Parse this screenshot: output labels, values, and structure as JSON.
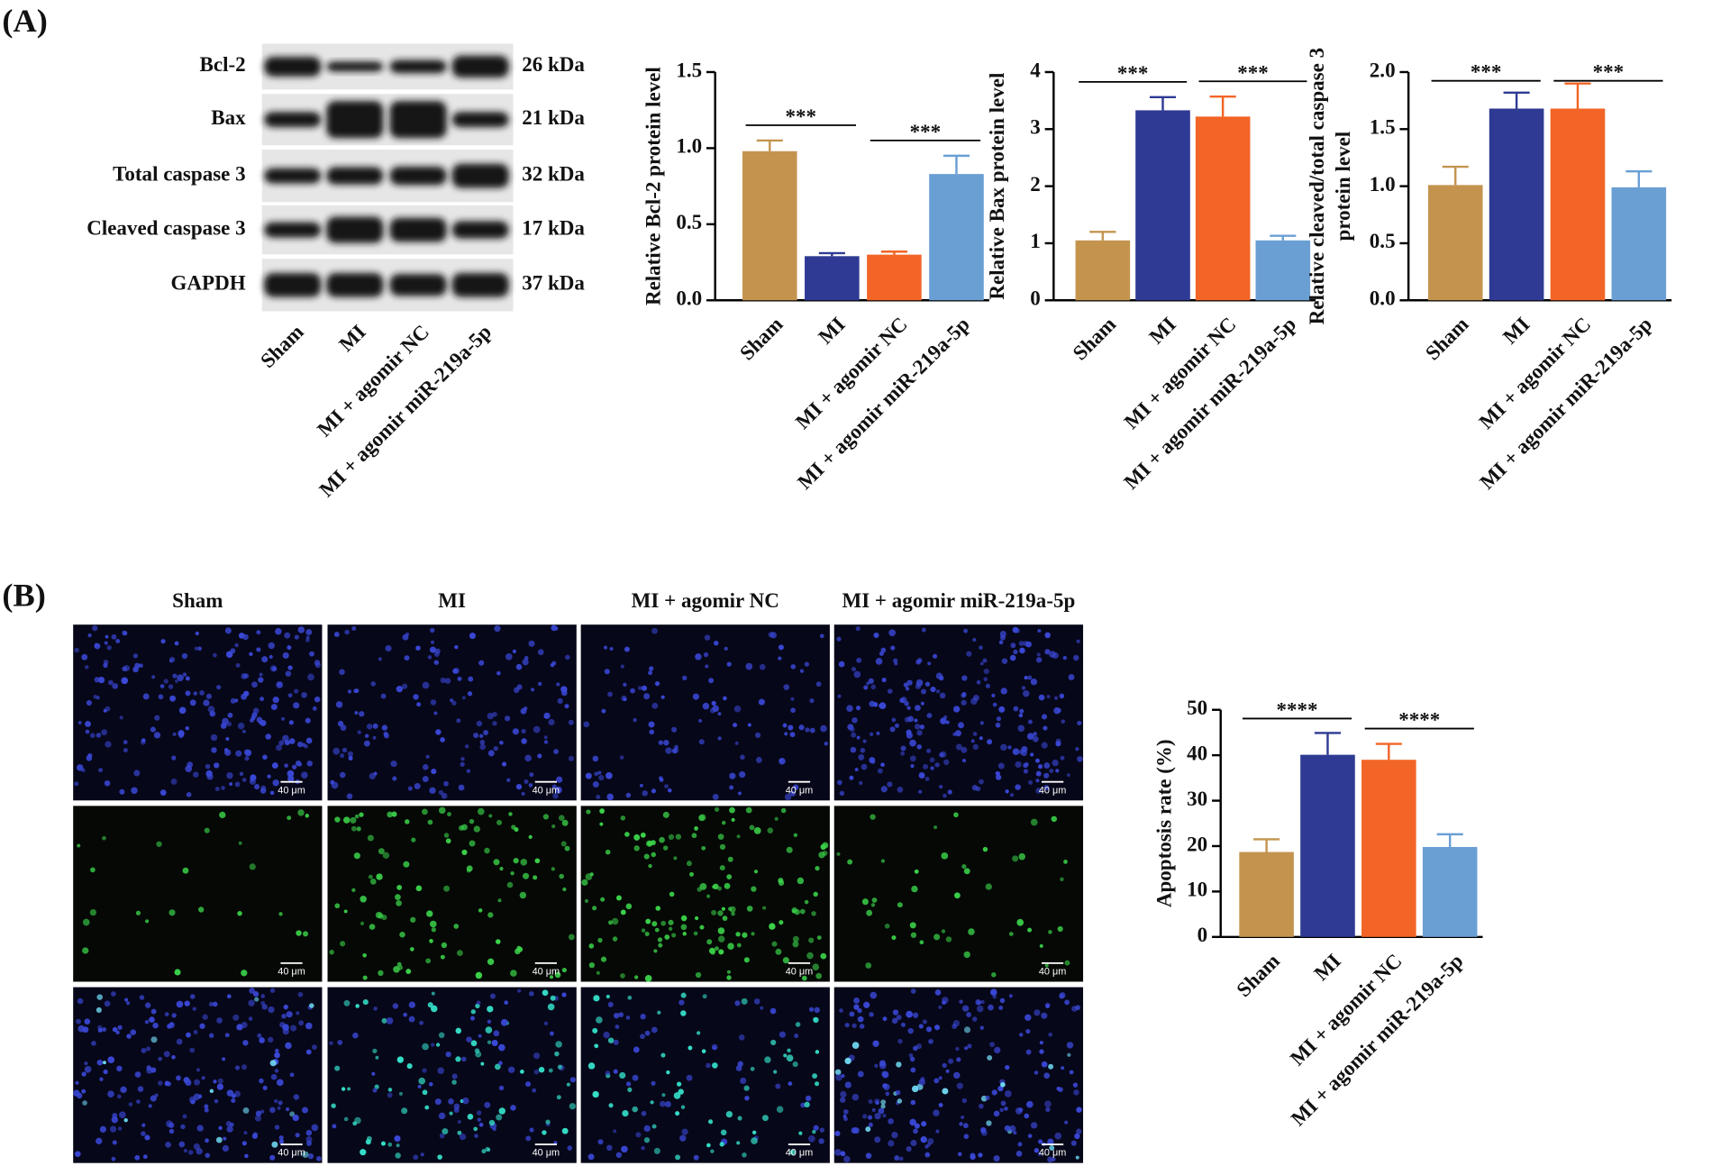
{
  "panel_labels": [
    "(A)",
    "(B)"
  ],
  "western_blot": {
    "rows": [
      {
        "protein": "Bcl-2",
        "size": "26 kDa"
      },
      {
        "protein": "Bax",
        "size": "21 kDa"
      },
      {
        "protein": "Total caspase 3",
        "size": "32 kDa"
      },
      {
        "protein": "Cleaved caspase 3",
        "size": "17 kDa"
      },
      {
        "protein": "GAPDH",
        "size": "37 kDa"
      }
    ],
    "lanes": [
      "Sham",
      "MI",
      "MI + agomir NC",
      "MI + agomir miR-219a-5p"
    ]
  },
  "microscopy": {
    "columns": [
      "Sham",
      "MI",
      "MI + agomir NC",
      "MI + agomir miR-219a-5p"
    ],
    "scale_bar": "40 μm"
  },
  "chart_data": [
    {
      "type": "bar",
      "ylabel": [
        "Relative Bcl-2 protein level"
      ],
      "categories": [
        "Sham",
        "MI",
        "MI + agomir NC",
        "MI + agomir miR-219a-5p"
      ],
      "values": [
        0.98,
        0.29,
        0.3,
        0.83
      ],
      "errors": [
        0.07,
        0.02,
        0.02,
        0.12
      ],
      "colors": [
        "#c4944f",
        "#2e3a93",
        "#f26526",
        "#6a9fd4"
      ],
      "ylim": [
        0,
        1.5
      ],
      "yticks": [
        {
          "value": 0,
          "label": "0.0"
        },
        0.5,
        {
          "value": 1,
          "label": "1.0"
        },
        1.5
      ],
      "significance": [
        {
          "text": "***",
          "between": [
            0,
            1
          ]
        },
        {
          "text": "***",
          "between": [
            2,
            3
          ]
        }
      ]
    },
    {
      "type": "bar",
      "ylabel": [
        "Relative Bax protein level"
      ],
      "categories": [
        "Sham",
        "MI",
        "MI + agomir NC",
        "MI + agomir miR-219a-5p"
      ],
      "values": [
        1.05,
        3.33,
        3.22,
        1.05
      ],
      "errors": [
        0.15,
        0.23,
        0.35,
        0.08
      ],
      "colors": [
        "#c4944f",
        "#2e3a93",
        "#f26526",
        "#6a9fd4"
      ],
      "ylim": [
        0,
        4
      ],
      "yticks": [
        0,
        1,
        2,
        3,
        4
      ],
      "significance": [
        {
          "text": "***",
          "between": [
            0,
            1
          ]
        },
        {
          "text": "***",
          "between": [
            2,
            3
          ]
        }
      ]
    },
    {
      "type": "bar",
      "ylabel": [
        "Relative cleaved/total caspase 3",
        "protein level"
      ],
      "categories": [
        "Sham",
        "MI",
        "MI + agomir NC",
        "MI + agomir miR-219a-5p"
      ],
      "values": [
        1.01,
        1.68,
        1.68,
        0.99
      ],
      "errors": [
        0.16,
        0.14,
        0.22,
        0.14
      ],
      "colors": [
        "#c4944f",
        "#2e3a93",
        "#f26526",
        "#6a9fd4"
      ],
      "ylim": [
        0,
        2
      ],
      "yticks": [
        {
          "value": 0,
          "label": "0.0"
        },
        0.5,
        {
          "value": 1,
          "label": "1.0"
        },
        1.5,
        {
          "value": 2,
          "label": "2.0"
        }
      ],
      "significance": [
        {
          "text": "***",
          "between": [
            0,
            1
          ]
        },
        {
          "text": "***",
          "between": [
            2,
            3
          ]
        }
      ]
    },
    {
      "type": "bar",
      "ylabel": [
        "Apoptosis rate (%)"
      ],
      "categories": [
        "Sham",
        "MI",
        "MI + agomir NC",
        "MI + agomir miR-219a-5p"
      ],
      "values": [
        18.7,
        40.1,
        39.0,
        19.8
      ],
      "errors": [
        2.8,
        4.8,
        3.5,
        2.8
      ],
      "colors": [
        "#c4944f",
        "#2e3a93",
        "#f26526",
        "#6a9fd4"
      ],
      "ylim": [
        0,
        50
      ],
      "yticks": [
        0,
        10,
        20,
        30,
        40,
        50
      ],
      "significance": [
        {
          "text": "****",
          "between": [
            0,
            1
          ]
        },
        {
          "text": "****",
          "between": [
            2,
            3
          ]
        }
      ]
    }
  ]
}
